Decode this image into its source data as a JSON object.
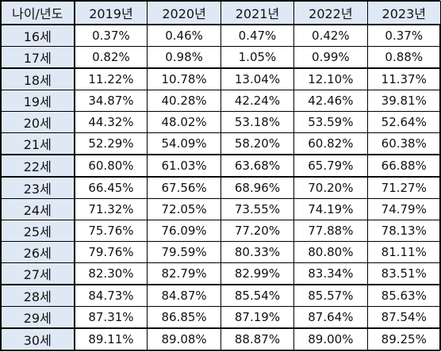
{
  "header": [
    "나이/년도",
    "2019년",
    "2020년",
    "2021년",
    "2022년",
    "2023년"
  ],
  "rows": [
    {
      "age": "16세",
      "values": [
        "0.37%",
        "0.46%",
        "0.47%",
        "0.42%",
        "0.37%"
      ]
    },
    {
      "age": "17세",
      "values": [
        "0.82%",
        "0.98%",
        "1.05%",
        "0.99%",
        "0.88%"
      ]
    },
    {
      "age": "18세",
      "values": [
        "11.22%",
        "10.78%",
        "13.04%",
        "12.10%",
        "11.37%"
      ]
    },
    {
      "age": "19세",
      "values": [
        "34.87%",
        "40.28%",
        "42.24%",
        "42.46%",
        "39.81%"
      ]
    },
    {
      "age": "20세",
      "values": [
        "44.32%",
        "48.02%",
        "53.18%",
        "53.59%",
        "52.64%"
      ]
    },
    {
      "age": "21세",
      "values": [
        "52.29%",
        "54.09%",
        "58.20%",
        "60.82%",
        "60.38%"
      ]
    },
    {
      "age": "22세",
      "values": [
        "60.80%",
        "61.03%",
        "63.68%",
        "65.79%",
        "66.88%"
      ]
    },
    {
      "age": "23세",
      "values": [
        "66.45%",
        "67.56%",
        "68.96%",
        "70.20%",
        "71.27%"
      ]
    },
    {
      "age": "24세",
      "values": [
        "71.32%",
        "72.05%",
        "73.55%",
        "74.19%",
        "74.79%"
      ]
    },
    {
      "age": "25세",
      "values": [
        "75.76%",
        "76.09%",
        "77.20%",
        "77.88%",
        "78.13%"
      ]
    },
    {
      "age": "26세",
      "values": [
        "79.76%",
        "79.59%",
        "80.33%",
        "80.80%",
        "81.11%"
      ]
    },
    {
      "age": "27세",
      "values": [
        "82.30%",
        "82.79%",
        "82.99%",
        "83.34%",
        "83.51%"
      ]
    },
    {
      "age": "28세",
      "values": [
        "84.73%",
        "84.87%",
        "85.54%",
        "85.57%",
        "85.63%"
      ]
    },
    {
      "age": "29세",
      "values": [
        "87.31%",
        "86.85%",
        "87.19%",
        "87.64%",
        "87.54%"
      ]
    },
    {
      "age": "30세",
      "values": [
        "89.11%",
        "89.08%",
        "88.87%",
        "89.00%",
        "89.25%"
      ]
    }
  ],
  "thick_rows": [
    2,
    6,
    7,
    12,
    14
  ],
  "colors": {
    "header_bg": "#dfe9f5",
    "age_bg": "#dfe9f5",
    "border": "#000000"
  }
}
